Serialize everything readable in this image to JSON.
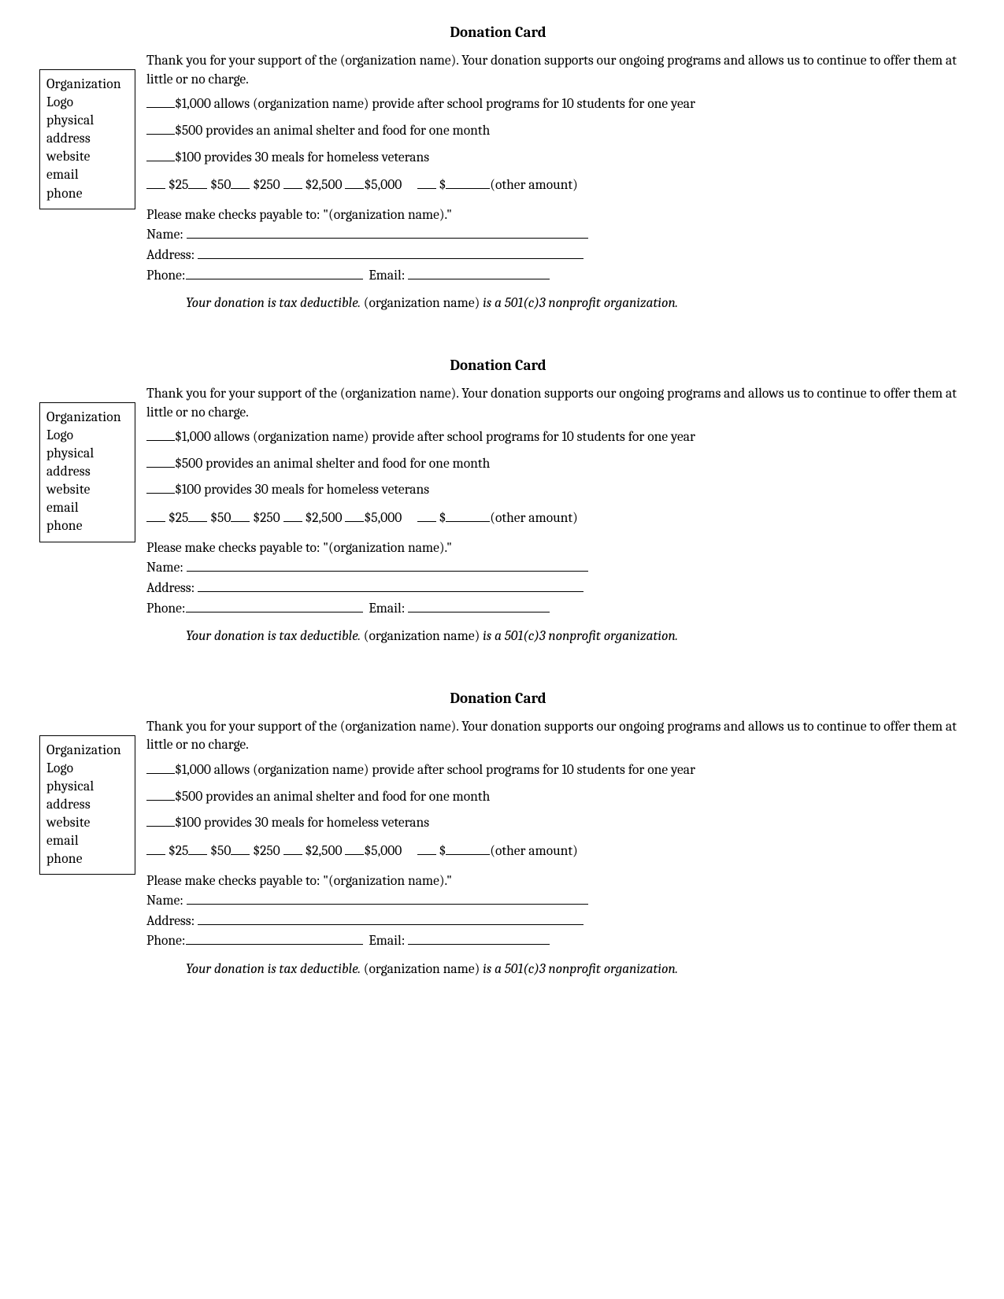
{
  "title": "Donation Card",
  "logo_box": {
    "line1": "Organization",
    "line2": "Logo",
    "line3": "physical",
    "line4": "address",
    "line5": "website",
    "line6": "email",
    "line7": "phone"
  },
  "thank_you": "Thank you for your support of the (organization name).  Your donation supports our ongoing programs and allows us to continue to offer them at little or no charge.",
  "tiers": {
    "t1": "$1,000 allows (organization name) provide after school programs for 10 students for one year",
    "t2": "$500 provides an animal shelter and food for one month",
    "t3": "$100 provides 30 meals for homeless veterans"
  },
  "amounts": {
    "a1": "$25",
    "a2": "$50",
    "a3": "$250",
    "a4": "$2,500",
    "a5": "$5,000",
    "other_prefix": "$",
    "other_label": "(other amount)"
  },
  "payable": "Please make checks payable to: \"(organization name).\"",
  "labels": {
    "name": "Name: ",
    "address": "Address: ",
    "phone": "Phone:",
    "email": "Email: "
  },
  "tax": {
    "part1": "Your donation is tax deductible. ",
    "part2": "(organization name)",
    "part3": " is a 501(c)3 nonprofit organization."
  }
}
